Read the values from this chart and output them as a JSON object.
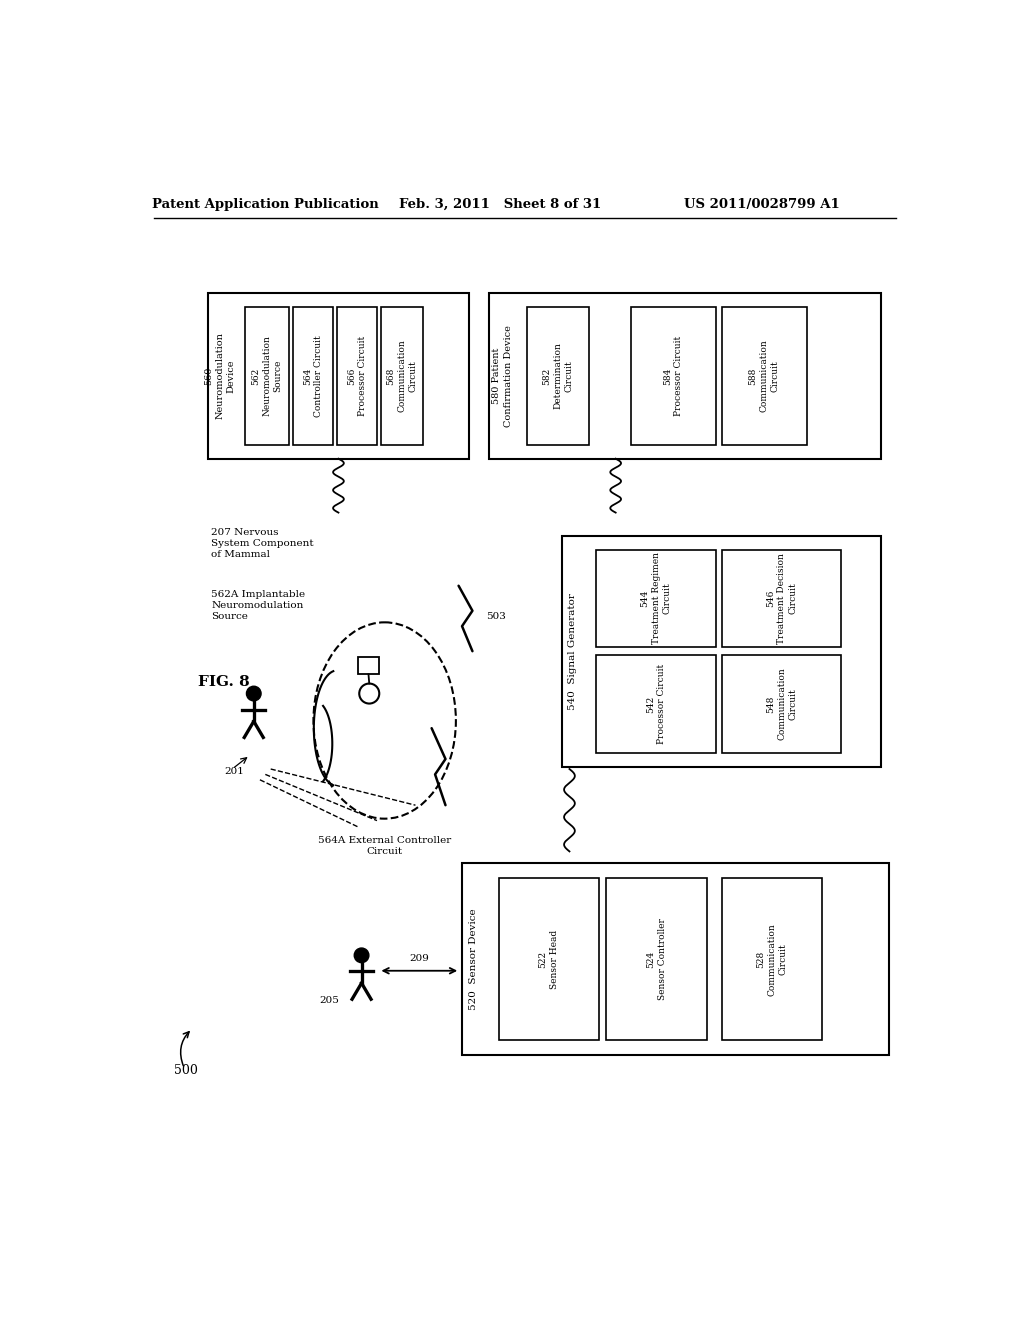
{
  "bg_color": "#ffffff",
  "header_left": "Patent Application Publication",
  "header_mid": "Feb. 3, 2011   Sheet 8 of 31",
  "header_right": "US 2011/0028799 A1"
}
